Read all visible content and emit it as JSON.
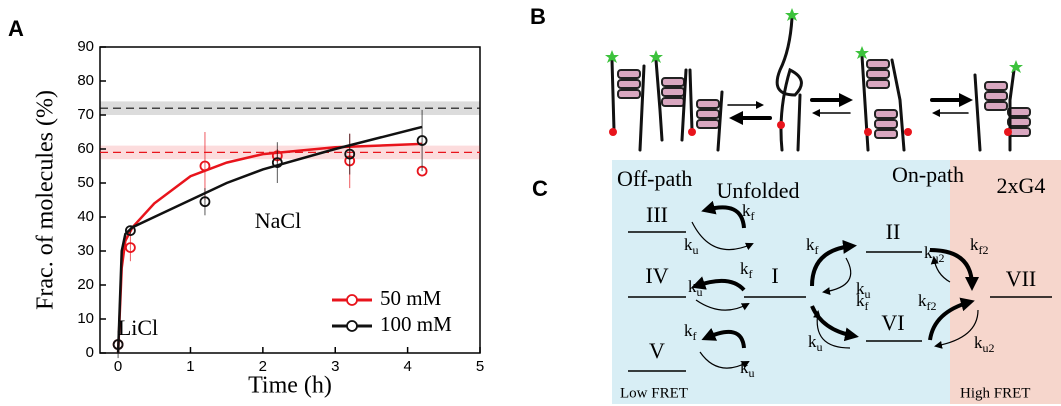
{
  "panel_labels": [
    "A",
    "B",
    "C"
  ],
  "chart_data": {
    "type": "scatter",
    "xlabel": "Time (h)",
    "ylabel": "Frac. of molecules (%)",
    "xlim": [
      -0.25,
      5
    ],
    "xticks": [
      0,
      1,
      2,
      3,
      4,
      5
    ],
    "ylim": [
      0,
      90
    ],
    "yticks": [
      0,
      10,
      20,
      30,
      40,
      50,
      60,
      70,
      80,
      90
    ],
    "legend": "lower right",
    "annotations": [
      "LiCl",
      "NaCl"
    ],
    "series": [
      {
        "name": "50 mM",
        "color": "#e8141c",
        "x": [
          0,
          0.17,
          1.2,
          2.2,
          3.2,
          4.2
        ],
        "values": [
          2.5,
          31,
          55,
          58,
          56.5,
          53.5
        ],
        "errors": [
          1.5,
          4,
          10,
          2,
          8,
          null
        ],
        "fit_x": [
          0,
          0.05,
          0.1,
          0.2,
          0.5,
          1,
          1.5,
          2,
          3,
          4.2
        ],
        "fit_values": [
          0,
          25,
          33,
          37,
          44,
          52,
          56,
          58.5,
          60.5,
          61.5
        ],
        "reference": 59,
        "reference_band": [
          57,
          61
        ]
      },
      {
        "name": "100 mM",
        "color": "#111111",
        "x": [
          0,
          0.17,
          1.2,
          2.2,
          3.2,
          4.2
        ],
        "values": [
          2.5,
          36,
          44.5,
          56,
          58.5,
          62.5
        ],
        "errors": [
          4,
          1,
          4,
          6,
          6,
          9
        ],
        "fit_x": [
          0,
          0.05,
          0.1,
          0.2,
          0.5,
          1,
          1.5,
          2,
          3,
          4.2
        ],
        "fit_values": [
          0,
          30,
          35,
          37,
          40,
          45,
          50,
          54,
          60,
          66.5
        ],
        "reference": 72,
        "reference_band": [
          70,
          74
        ]
      }
    ]
  },
  "diagram": {
    "regions": [
      "Off-path",
      "Unfolded",
      "On-path",
      "2xG4"
    ],
    "states": [
      "I",
      "II",
      "III",
      "IV",
      "V",
      "VI",
      "VII"
    ],
    "rates": [
      {
        "symbol": "k",
        "subscript": "f"
      },
      {
        "symbol": "k",
        "subscript": "u"
      },
      {
        "symbol": "k",
        "subscript": "f"
      },
      {
        "symbol": "k",
        "subscript": "u"
      },
      {
        "symbol": "k",
        "subscript": "f"
      },
      {
        "symbol": "k",
        "subscript": "u"
      },
      {
        "symbol": "k",
        "subscript": "f"
      },
      {
        "symbol": "k",
        "subscript": "u"
      },
      {
        "symbol": "k",
        "subscript": "f"
      },
      {
        "symbol": "k",
        "subscript": "u"
      },
      {
        "symbol": "k",
        "subscript": "f2"
      },
      {
        "symbol": "k",
        "subscript": "u2"
      },
      {
        "symbol": "k",
        "subscript": "f2"
      },
      {
        "symbol": "k",
        "subscript": "u2"
      }
    ],
    "fret": [
      "Low FRET",
      "High FRET"
    ]
  }
}
